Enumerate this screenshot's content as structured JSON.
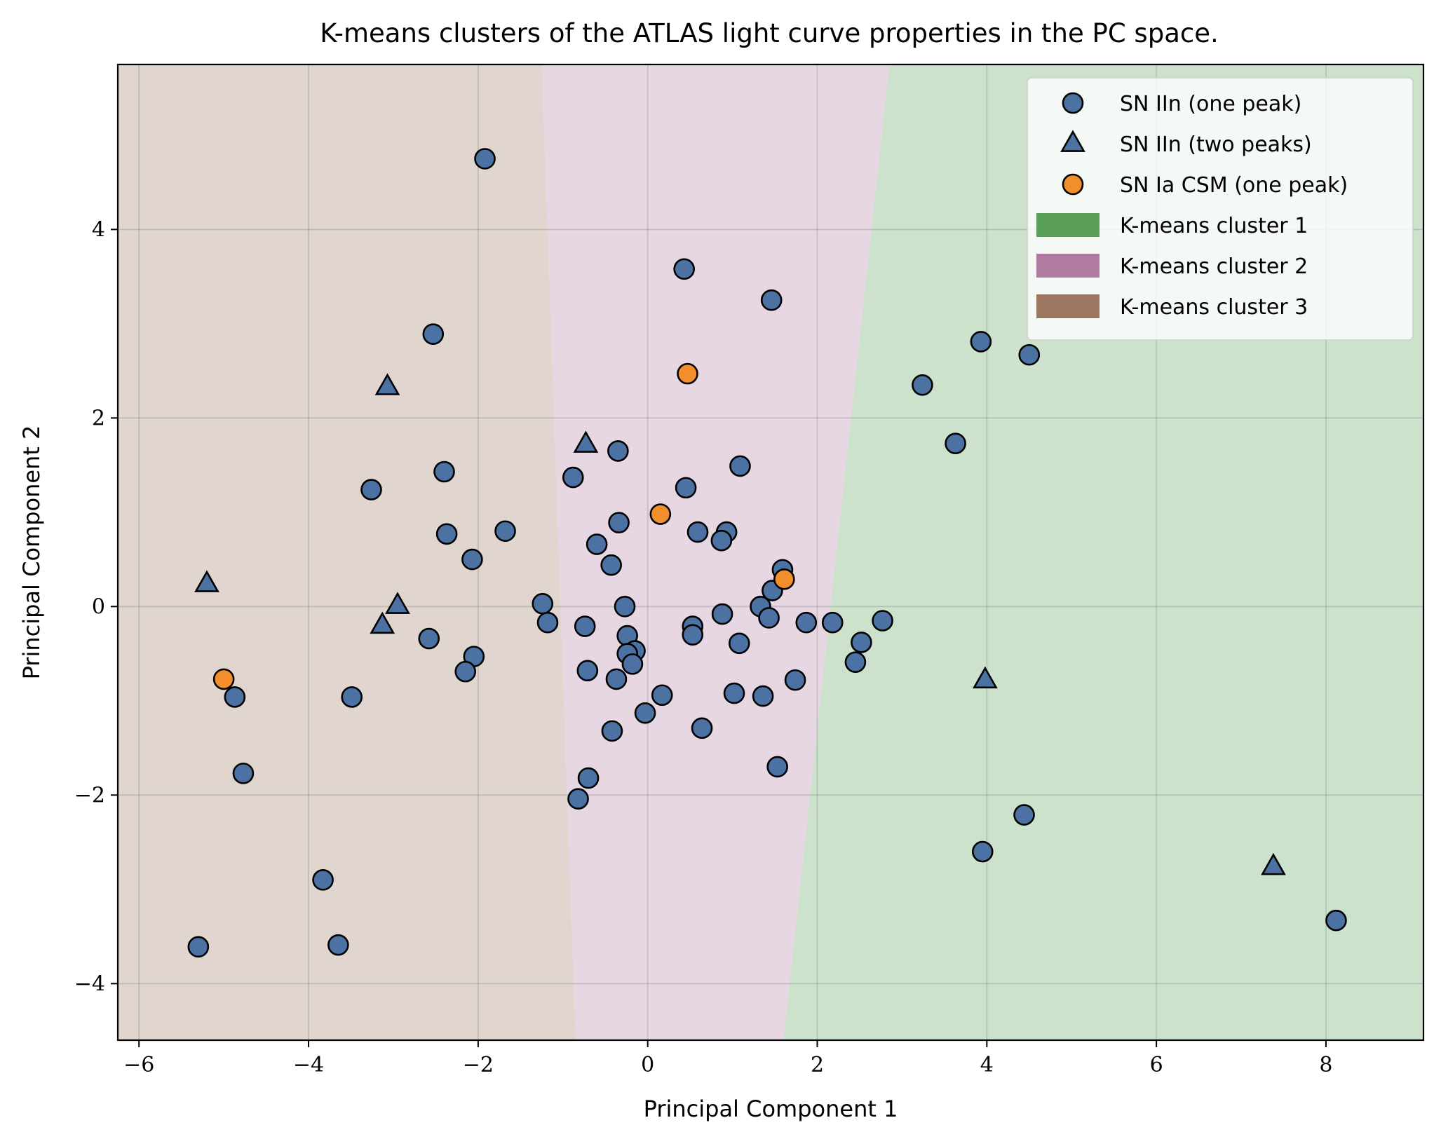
{
  "chart_data": {
    "type": "scatter",
    "title": "K-means clusters of the ATLAS light curve properties in the PC space.",
    "xlabel": "Principal Component 1",
    "ylabel": "Principal Component 2",
    "xlim": [
      -6.25,
      9.15
    ],
    "ylim": [
      -4.6,
      5.75
    ],
    "xticks": [
      -6,
      -4,
      -2,
      0,
      2,
      4,
      6,
      8
    ],
    "yticks": [
      -4,
      -2,
      0,
      2,
      4
    ],
    "xtick_labels": [
      "−6",
      "−4",
      "−2",
      "0",
      "2",
      "4",
      "6",
      "8"
    ],
    "ytick_labels": [
      "−4",
      "−2",
      "0",
      "2",
      "4"
    ],
    "grid": true,
    "legend_position": "top-right",
    "regions": [
      {
        "name": "K-means cluster 1",
        "color": "#5ba05a",
        "fill_opacity": 0.3,
        "polygon": [
          [
            2.85,
            5.75
          ],
          [
            9.15,
            5.75
          ],
          [
            9.15,
            -4.6
          ],
          [
            1.6,
            -4.6
          ]
        ]
      },
      {
        "name": "K-means cluster 2",
        "color": "#b07aa1",
        "fill_opacity": 0.3,
        "polygon": [
          [
            -1.25,
            5.75
          ],
          [
            2.85,
            5.75
          ],
          [
            1.6,
            -4.6
          ],
          [
            -0.85,
            -4.6
          ]
        ]
      },
      {
        "name": "K-means cluster 3",
        "color": "#9c7660",
        "fill_opacity": 0.3,
        "polygon": [
          [
            -6.25,
            5.75
          ],
          [
            -1.25,
            5.75
          ],
          [
            -0.85,
            -4.6
          ],
          [
            -6.25,
            -4.6
          ]
        ]
      }
    ],
    "series": [
      {
        "name": "SN IIn (one peak)",
        "marker": "circle",
        "color": "#4c72a4",
        "points": [
          [
            -1.92,
            4.75
          ],
          [
            0.43,
            3.58
          ],
          [
            1.46,
            3.25
          ],
          [
            -2.53,
            2.89
          ],
          [
            3.93,
            2.81
          ],
          [
            4.5,
            2.67
          ],
          [
            3.24,
            2.35
          ],
          [
            3.63,
            1.73
          ],
          [
            -0.35,
            1.65
          ],
          [
            1.09,
            1.49
          ],
          [
            -2.4,
            1.43
          ],
          [
            -0.88,
            1.37
          ],
          [
            -3.26,
            1.24
          ],
          [
            0.45,
            1.26
          ],
          [
            -0.34,
            0.89
          ],
          [
            -2.37,
            0.77
          ],
          [
            -1.68,
            0.8
          ],
          [
            0.59,
            0.79
          ],
          [
            0.93,
            0.79
          ],
          [
            0.87,
            0.7
          ],
          [
            -0.6,
            0.66
          ],
          [
            -2.07,
            0.5
          ],
          [
            -0.43,
            0.44
          ],
          [
            1.59,
            0.39
          ],
          [
            1.47,
            0.17
          ],
          [
            -1.24,
            0.03
          ],
          [
            -0.27,
            0.0
          ],
          [
            1.33,
            0.0
          ],
          [
            0.88,
            -0.08
          ],
          [
            1.43,
            -0.12
          ],
          [
            -1.18,
            -0.17
          ],
          [
            1.87,
            -0.17
          ],
          [
            2.18,
            -0.17
          ],
          [
            2.77,
            -0.15
          ],
          [
            -0.74,
            -0.21
          ],
          [
            0.53,
            -0.21
          ],
          [
            0.53,
            -0.3
          ],
          [
            -0.24,
            -0.31
          ],
          [
            -2.58,
            -0.34
          ],
          [
            2.52,
            -0.38
          ],
          [
            1.08,
            -0.39
          ],
          [
            -0.15,
            -0.47
          ],
          [
            -0.24,
            -0.5
          ],
          [
            -2.05,
            -0.53
          ],
          [
            2.45,
            -0.59
          ],
          [
            -0.18,
            -0.61
          ],
          [
            -0.71,
            -0.68
          ],
          [
            -2.15,
            -0.69
          ],
          [
            -0.37,
            -0.77
          ],
          [
            1.74,
            -0.78
          ],
          [
            1.02,
            -0.92
          ],
          [
            1.36,
            -0.95
          ],
          [
            0.17,
            -0.94
          ],
          [
            -3.49,
            -0.96
          ],
          [
            -4.87,
            -0.96
          ],
          [
            -0.03,
            -1.13
          ],
          [
            0.64,
            -1.29
          ],
          [
            -0.42,
            -1.32
          ],
          [
            1.53,
            -1.7
          ],
          [
            -4.77,
            -1.77
          ],
          [
            -0.7,
            -1.82
          ],
          [
            -0.82,
            -2.04
          ],
          [
            4.44,
            -2.21
          ],
          [
            3.95,
            -2.6
          ],
          [
            -3.83,
            -2.9
          ],
          [
            8.12,
            -3.33
          ],
          [
            -5.3,
            -3.61
          ],
          [
            -3.65,
            -3.59
          ]
        ]
      },
      {
        "name": "SN IIn (two peaks)",
        "marker": "triangle",
        "color": "#4c72a4",
        "points": [
          [
            -3.07,
            2.33
          ],
          [
            -0.73,
            1.72
          ],
          [
            -5.2,
            0.24
          ],
          [
            -2.95,
            0.01
          ],
          [
            -3.13,
            -0.2
          ],
          [
            3.98,
            -0.78
          ],
          [
            7.38,
            -2.76
          ]
        ]
      },
      {
        "name": "SN Ia CSM (one peak)",
        "marker": "circle",
        "color": "#f28e2b",
        "points": [
          [
            0.47,
            2.47
          ],
          [
            0.15,
            0.98
          ],
          [
            1.61,
            0.29
          ],
          [
            -5.0,
            -0.77
          ]
        ]
      }
    ]
  }
}
